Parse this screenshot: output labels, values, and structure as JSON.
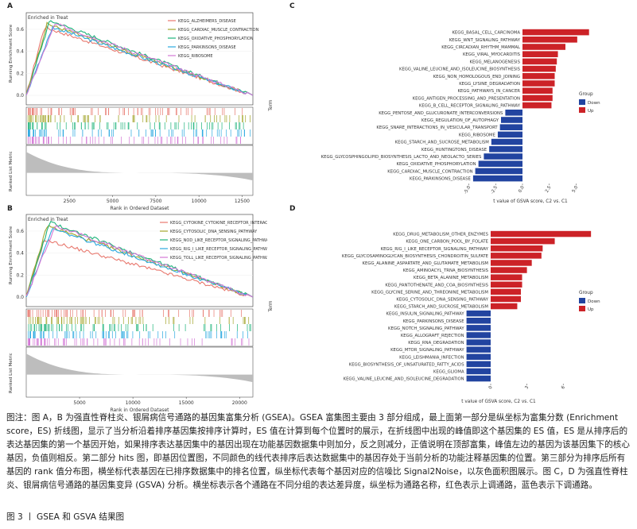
{
  "panels": {
    "A": {
      "label": "A",
      "subtitle": "Enriched in Treat",
      "ylabel_top": "Running Enrichment Score",
      "ylabel_bottom": "Ranked List Metric",
      "xlabel": "Rank in Ordered Dataset",
      "yticks": [
        "0.0",
        "0.2",
        "0.4",
        "0.6"
      ],
      "xticks": [
        "2500",
        "5000",
        "7500",
        "10000",
        "12500"
      ],
      "legend": [
        {
          "name": "KEGG_ALZHEIMERS_DISEASE",
          "color": "#e8786e"
        },
        {
          "name": "KEGG_CARDIAC_MUSCLE_CONTRACTION",
          "color": "#a3a52c"
        },
        {
          "name": "KEGG_OXIDATIVE_PHOSPHORYLATION",
          "color": "#1db37a"
        },
        {
          "name": "KEGG_PARKINSONS_DISEASE",
          "color": "#2ba9e0"
        },
        {
          "name": "KEGG_RIBOSOME",
          "color": "#d377d5"
        }
      ]
    },
    "B": {
      "label": "B",
      "subtitle": "Enriched in Treat",
      "ylabel_top": "Running Enrichment Score",
      "ylabel_bottom": "Ranked List Metric",
      "xlabel": "Rank in Ordered Dataset",
      "yticks": [
        "0.0",
        "0.2",
        "0.4",
        "0.6"
      ],
      "xticks": [
        "5000",
        "10000",
        "15000",
        "20000"
      ],
      "legend": [
        {
          "name": "KEGG_CYTOKINE_CYTOKINE_RECEPTOR_INTERACTION",
          "color": "#e8786e"
        },
        {
          "name": "KEGG_CYTOSOLIC_DNA_SENSING_PATHWAY",
          "color": "#a3a52c"
        },
        {
          "name": "KEGG_NOD_LIKE_RECEPTOR_SIGNALING_PATHWAY",
          "color": "#1db37a"
        },
        {
          "name": "KEGG_RIG_I_LIKE_RECEPTOR_SIGNALING_PATHWAY",
          "color": "#2ba9e0"
        },
        {
          "name": "KEGG_TOLL_LIKE_RECEPTOR_SIGNALING_PATHWAY",
          "color": "#d377d5"
        }
      ]
    },
    "C": {
      "label": "C",
      "ylabel": "Term",
      "xlabel": "t value of GSVA score, C2 vs. C1",
      "xticks": [
        "-5.0",
        "-2.5",
        "0.0",
        "2.5",
        "5.0"
      ],
      "legend_title": "Group",
      "legend_items": [
        {
          "name": "Down",
          "color": "#2244a0"
        },
        {
          "name": "Up",
          "color": "#cc2227"
        }
      ]
    },
    "D": {
      "label": "D",
      "ylabel": "Term",
      "xlabel": "t value of GSVA score, C2 vs. C1",
      "xticks": [
        "0",
        "3",
        "6"
      ],
      "legend_title": "Group",
      "legend_items": [
        {
          "name": "Down",
          "color": "#2244a0"
        },
        {
          "name": "Up",
          "color": "#cc2227"
        }
      ]
    }
  },
  "chart_data": [
    {
      "panel": "C",
      "type": "bar",
      "orientation": "horizontal",
      "xlim": [
        -6.5,
        7
      ],
      "categories": [
        "KEGG_BASAL_CELL_CARCINOMA",
        "KEGG_WNT_SIGNALING_PATHWAY",
        "KEGG_CIRCADIAN_RHYTHM_MAMMAL",
        "KEGG_VIRAL_MYOCARDITIS",
        "KEGG_MELANOGENESIS",
        "KEGG_VALINE_LEUCINE_AND_ISOLEUCINE_BIOSYNTHESIS",
        "KEGG_NON_HOMOLOGOUS_END_JOINING",
        "KEGG_LYSINE_DEGRADATION",
        "KEGG_PATHWAYS_IN_CANCER",
        "KEGG_ANTIGEN_PROCESSING_AND_PRESENTATION",
        "KEGG_B_CELL_RECEPTOR_SIGNALING_PATHWAY",
        "KEGG_PENTOSE_AND_GLUCURONATE_INTERCONVERSIONS",
        "KEGG_REGULATION_OF_AUTOPHAGY",
        "KEGG_SNARE_INTERACTIONS_IN_VESICULAR_TRANSPORT",
        "KEGG_RIBOSOME",
        "KEGG_STARCH_AND_SUCROSE_METABOLISM",
        "KEGG_HUNTINGTONS_DISEASE",
        "KEGG_GLYCOSPHINGOLIPID_BIOSYNTHESIS_LACTO_AND_NEOLACTO_SERIES",
        "KEGG_OXIDATIVE_PHOSPHORYLATION",
        "KEGG_CARDIAC_MUSCLE_CONTRACTION",
        "KEGG_PARKINSONS_DISEASE"
      ],
      "values": [
        6.2,
        5.1,
        4.0,
        3.3,
        3.2,
        3.1,
        3.0,
        3.0,
        2.8,
        2.8,
        2.7,
        -1.6,
        -2.0,
        -2.1,
        -2.3,
        -2.9,
        -3.1,
        -3.6,
        -4.1,
        -4.4,
        -4.6
      ],
      "groups": [
        "Up",
        "Up",
        "Up",
        "Up",
        "Up",
        "Up",
        "Up",
        "Up",
        "Up",
        "Up",
        "Up",
        "Down",
        "Down",
        "Down",
        "Down",
        "Down",
        "Down",
        "Down",
        "Down",
        "Down",
        "Down"
      ]
    },
    {
      "panel": "D",
      "type": "bar",
      "orientation": "horizontal",
      "xlim": [
        -4,
        9
      ],
      "categories": [
        "KEGG_DRUG_METABOLISM_OTHER_ENZYMES",
        "KEGG_ONE_CARBON_POOL_BY_FOLATE",
        "KEGG_RIG_I_LIKE_RECEPTOR_SIGNALING_PATHWAY",
        "KEGG_GLYCOSAMINOGLYCAN_BIOSYNTHESIS_CHONDROITIN_SULFATE",
        "KEGG_ALANINE_ASPARTATE_AND_GLUTAMATE_METABOLISM",
        "KEGG_AMINOACYL_TRNA_BIOSYNTHESIS",
        "KEGG_BETA_ALANINE_METABOLISM",
        "KEGG_PANTOTHENATE_AND_COA_BIOSYNTHESIS",
        "KEGG_GLYCINE_SERINE_AND_THREONINE_METABOLISM",
        "KEGG_CYTOSOLIC_DNA_SENSING_PATHWAY",
        "KEGG_STARCH_AND_SUCROSE_METABOLISM",
        "KEGG_INSULIN_SIGNALING_PATHWAY",
        "KEGG_PARKINSONS_DISEASE",
        "KEGG_NOTCH_SIGNALING_PATHWAY",
        "KEGG_ALLOGRAFT_REJECTION",
        "KEGG_RNA_DEGRADATION",
        "KEGG_MTOR_SIGNALING_PATHWAY",
        "KEGG_LEISHMANIA_INFECTION",
        "KEGG_BIOSYNTHESIS_OF_UNSATURATED_FATTY_ACIDS",
        "KEGG_GLIOMA",
        "KEGG_VALINE_LEUCINE_AND_ISOLEUCINE_DEGRADATION"
      ],
      "values": [
        8.3,
        5.3,
        4.3,
        4.2,
        3.4,
        3.0,
        2.6,
        2.6,
        2.5,
        2.5,
        2.2,
        -2.0,
        -2.0,
        -2.0,
        -2.0,
        -2.0,
        -2.0,
        -2.0,
        -2.0,
        -2.0,
        -2.0
      ],
      "groups": [
        "Up",
        "Up",
        "Up",
        "Up",
        "Up",
        "Up",
        "Up",
        "Up",
        "Up",
        "Up",
        "Up",
        "Down",
        "Down",
        "Down",
        "Down",
        "Down",
        "Down",
        "Down",
        "Down",
        "Down",
        "Down"
      ]
    }
  ],
  "caption": {
    "text": "图注：图 A，B 为强直性脊柱炎、银屑病信号通路的基因集富集分析 (GSEA)。GSEA 富集图主要由 3 部分组成，最上面第一部分是纵坐标为富集分数 (Enrichment score，ES) 折线图，显示了当分析沿着排序基因集按排序计算时，ES 值在计算到每个位置时的展示，在折线图中出现的峰值即这个基因集的 ES 值，ES 是从排序后的表达基因集的第一个基因开始，如果排序表达基因集中的基因出现在功能基因数据集中则加分，反之则减分，正值说明在顶部富集，峰值左边的基因为该基因集下的核心基因，负值则相反。第二部分 hits 图，即基因位置图，不同颜色的线代表排序后表达数据集中的基因存处于当前分析的功能注释基因集的位置。第三部分为排序后所有基因的 rank 值分布图，横坐标代表基因在已排序数据集中的排名位置，纵坐标代表每个基因对应的信噪比 Signal2Noise，以灰色面积图展示。图 C，D 为强直性脊柱炎、银屑病信号通路的基因集变异 (GSVA) 分析。横坐标表示各个通路在不同分组的表达差异度，纵坐标为通路名称，红色表示上调通路，蓝色表示下调通路。",
    "figure_title": "图 3 丨 GSEA 和 GSVA 结果图"
  }
}
